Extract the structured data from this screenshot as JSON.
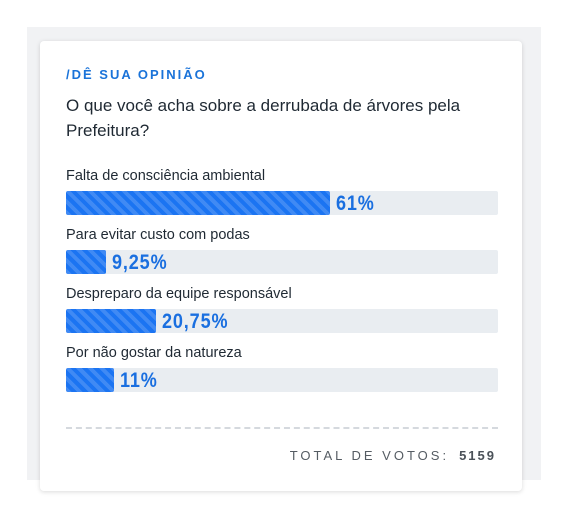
{
  "poll": {
    "kicker": "/DÊ SUA OPINIÃO",
    "question": "O que você acha sobre a derrubada de árvores pela Prefeitura?",
    "options": [
      {
        "label": "Falta de consciência ambiental",
        "percent_text": "61%",
        "percent": 61
      },
      {
        "label": "Para evitar custo com podas",
        "percent_text": "9,25%",
        "percent": 9.25
      },
      {
        "label": "Despreparo da equipe responsável",
        "percent_text": "20,75%",
        "percent": 20.75
      },
      {
        "label": "Por não gostar da natureza",
        "percent_text": "11%",
        "percent": 11
      }
    ],
    "total_label": "TOTAL DE VOTOS:",
    "total_votes": "5159"
  },
  "colors": {
    "accent": "#1a73d9",
    "bar_fill": "#1b74f2",
    "bar_track": "#e9edf1",
    "text": "#1f2933"
  }
}
